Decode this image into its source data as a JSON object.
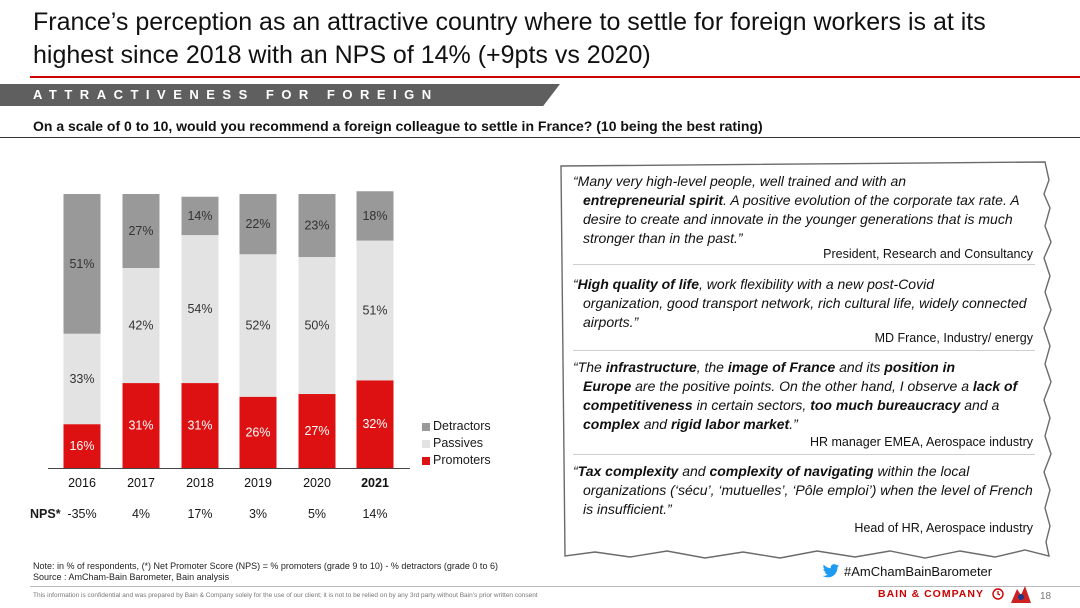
{
  "title": "France’s perception as an attractive country where to settle for foreign workers is at its highest since 2018 with an NPS of 14% (+9pts vs 2020)",
  "section_banner": "ATTRACTIVENESS FOR FOREIGN EMPLOYEES",
  "question": "On a scale of 0 to 10, would you recommend a foreign colleague to settle in France? (10 being the best rating)",
  "colors": {
    "promoters": "#dd1111",
    "passives": "#e3e3e3",
    "detractors": "#999999",
    "accent": "#cc0000"
  },
  "chart_data": {
    "type": "bar",
    "stacked": true,
    "categories": [
      "2016",
      "2017",
      "2018",
      "2019",
      "2020",
      "2021"
    ],
    "highlight_category": "2021",
    "series": [
      {
        "name": "Promoters",
        "values": [
          16,
          31,
          31,
          26,
          27,
          32
        ],
        "labels": [
          "16%",
          "31%",
          "31%",
          "26%",
          "27%",
          "32%"
        ]
      },
      {
        "name": "Passives",
        "values": [
          33,
          42,
          54,
          52,
          50,
          51
        ],
        "labels": [
          "33%",
          "42%",
          "54%",
          "52%",
          "50%",
          "51%"
        ]
      },
      {
        "name": "Detractors",
        "values": [
          51,
          27,
          14,
          22,
          23,
          18
        ],
        "labels": [
          "51%",
          "27%",
          "14%",
          "22%",
          "23%",
          "18%"
        ]
      }
    ],
    "ylim": [
      0,
      100
    ],
    "legend": [
      "Detractors",
      "Passives",
      "Promoters"
    ],
    "legend_position": "right",
    "nps_label": "NPS*",
    "nps_values": [
      "-35%",
      "4%",
      "17%",
      "3%",
      "5%",
      "14%"
    ]
  },
  "quotes": [
    {
      "line1_parts": [
        {
          "t": "“Many very high-level people, well trained and with an",
          "b": false
        }
      ],
      "rest_parts": [
        {
          "t": "entrepreneurial spirit",
          "b": true
        },
        {
          "t": ". A positive evolution of the corporate tax rate. A desire to create and innovate in the younger generations that is much stronger than in the past.”",
          "b": false
        }
      ],
      "attribution": "President, Research and Consultancy"
    },
    {
      "line1_parts": [
        {
          "t": "“",
          "b": false
        },
        {
          "t": "High quality of life",
          "b": true
        },
        {
          "t": ", work flexibility with a new post-Covid",
          "b": false
        }
      ],
      "rest_parts": [
        {
          "t": "organization, good transport network, rich cultural life, widely connected airports.”",
          "b": false
        }
      ],
      "attribution": "MD France, Industry/ energy"
    },
    {
      "line1_parts": [
        {
          "t": "“The ",
          "b": false
        },
        {
          "t": "infrastructure",
          "b": true
        },
        {
          "t": ", the ",
          "b": false
        },
        {
          "t": "image of France",
          "b": true
        },
        {
          "t": " and its ",
          "b": false
        },
        {
          "t": "position in",
          "b": true
        }
      ],
      "rest_parts": [
        {
          "t": "Europe",
          "b": true
        },
        {
          "t": " are the positive points. On the other hand, I observe a ",
          "b": false
        },
        {
          "t": "lack of competitiveness",
          "b": true
        },
        {
          "t": " in certain sectors, ",
          "b": false
        },
        {
          "t": "too much bureaucracy",
          "b": true
        },
        {
          "t": " and a ",
          "b": false
        },
        {
          "t": "complex",
          "b": true
        },
        {
          "t": " and ",
          "b": false
        },
        {
          "t": "rigid labor market",
          "b": true
        },
        {
          "t": ".”",
          "b": false
        }
      ],
      "attribution": "HR manager EMEA, Aerospace industry"
    },
    {
      "line1_parts": [
        {
          "t": "“",
          "b": false
        },
        {
          "t": "Tax complexity",
          "b": true
        },
        {
          "t": " and ",
          "b": false
        },
        {
          "t": "complexity of navigating",
          "b": true
        },
        {
          "t": " within the local",
          "b": false
        }
      ],
      "rest_parts": [
        {
          "t": "organizations (‘sécu’, ‘mutuelles’, ‘Pôle emploi’) when the level of French is insufficient.”",
          "b": false
        }
      ],
      "attribution": "Head of HR, Aerospace industry"
    }
  ],
  "note": "Note: in % of respondents, (*) Net Promoter Score (NPS) = % promoters (grade 9 to 10) - % detractors (grade 0 to 6)",
  "source": "Source : AmCham-Bain Barometer, Bain analysis",
  "hashtag": "#AmChamBainBarometer",
  "twitter_icon": "twitter-bird-icon",
  "confidential": "This information is confidential and was prepared by Bain & Company solely for the use of our client; it is not to be relied on by any 3rd party without Bain’s prior written consent",
  "brand": "BAIN & COMPANY",
  "page_number": "18"
}
